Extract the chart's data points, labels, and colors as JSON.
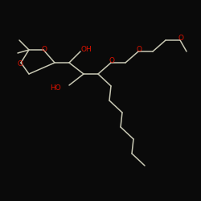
{
  "bg_color": "#0a0a0a",
  "bond_color": "#c8c8b4",
  "oxygen_color": "#dd1100",
  "figsize": [
    2.5,
    2.5
  ],
  "dpi": 100,
  "xlim": [
    0,
    250
  ],
  "ylim": [
    0,
    250
  ],
  "lw": 1.1,
  "font_size": 6.5
}
